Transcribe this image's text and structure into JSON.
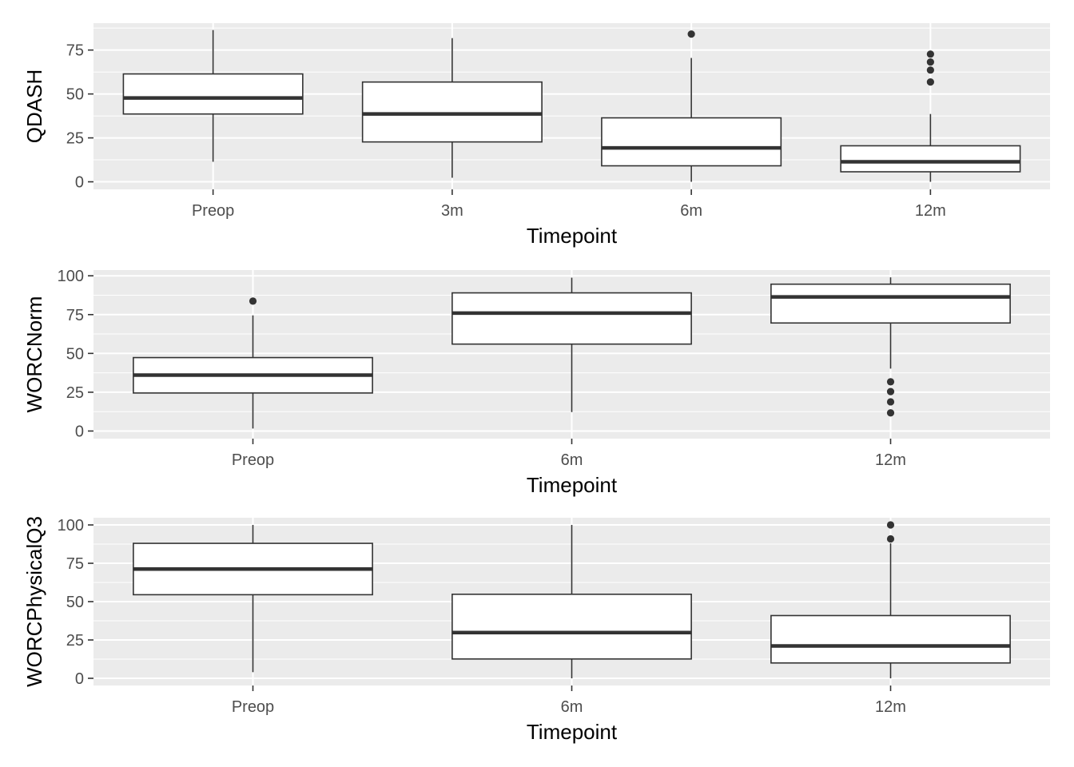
{
  "chart_data": [
    {
      "type": "box",
      "ylabel": "QDASH",
      "xlabel": "Timepoint",
      "categories": [
        "Preop",
        "3m",
        "6m",
        "12m"
      ],
      "ylim": [
        -4.3,
        90.3
      ],
      "yticks": [
        0,
        25,
        50,
        75
      ],
      "grid": true,
      "boxes": [
        {
          "category": "Preop",
          "whisker_low": 11.4,
          "q1": 38.6,
          "median": 47.7,
          "q3": 61.4,
          "whisker_high": 86.4,
          "outliers": []
        },
        {
          "category": "3m",
          "whisker_low": 2.3,
          "q1": 22.7,
          "median": 38.6,
          "q3": 56.8,
          "whisker_high": 81.8,
          "outliers": []
        },
        {
          "category": "6m",
          "whisker_low": 0,
          "q1": 9.1,
          "median": 19.3,
          "q3": 36.4,
          "whisker_high": 70.5,
          "outliers": [
            84.1
          ]
        },
        {
          "category": "12m",
          "whisker_low": 0,
          "q1": 5.7,
          "median": 11.4,
          "q3": 20.5,
          "whisker_high": 38.6,
          "outliers": [
            56.8,
            63.6,
            68.2,
            72.7
          ]
        }
      ]
    },
    {
      "type": "box",
      "ylabel": "WORCNorm",
      "xlabel": "Timepoint",
      "categories": [
        "Preop",
        "6m",
        "12m"
      ],
      "ylim": [
        -4.9,
        103.7
      ],
      "yticks": [
        0,
        25,
        50,
        75,
        100
      ],
      "grid": true,
      "boxes": [
        {
          "category": "Preop",
          "whisker_low": 1.6,
          "q1": 24.5,
          "median": 36.0,
          "q3": 47.3,
          "whisker_high": 74.5,
          "outliers": [
            83.7
          ]
        },
        {
          "category": "6m",
          "whisker_low": 12.2,
          "q1": 56.0,
          "median": 76.0,
          "q3": 89.0,
          "whisker_high": 98.8,
          "outliers": []
        },
        {
          "category": "12m",
          "whisker_low": 40.2,
          "q1": 69.6,
          "median": 86.4,
          "q3": 94.6,
          "whisker_high": 99.0,
          "outliers": [
            11.7,
            18.8,
            25.4,
            31.7
          ]
        }
      ]
    },
    {
      "type": "box",
      "ylabel": "WORCPhysicalQ3",
      "xlabel": "Timepoint",
      "categories": [
        "Preop",
        "6m",
        "12m"
      ],
      "ylim": [
        -4.7,
        104.7
      ],
      "yticks": [
        0,
        25,
        50,
        75,
        100
      ],
      "grid": true,
      "boxes": [
        {
          "category": "Preop",
          "whisker_low": 4.0,
          "q1": 54.5,
          "median": 71.2,
          "q3": 88.0,
          "whisker_high": 100,
          "outliers": []
        },
        {
          "category": "6m",
          "whisker_low": 0,
          "q1": 12.6,
          "median": 29.8,
          "q3": 54.8,
          "whisker_high": 100,
          "outliers": []
        },
        {
          "category": "12m",
          "whisker_low": 0,
          "q1": 10.0,
          "median": 21.1,
          "q3": 40.9,
          "whisker_high": 88.0,
          "outliers": [
            90.9,
            100
          ]
        }
      ]
    }
  ]
}
